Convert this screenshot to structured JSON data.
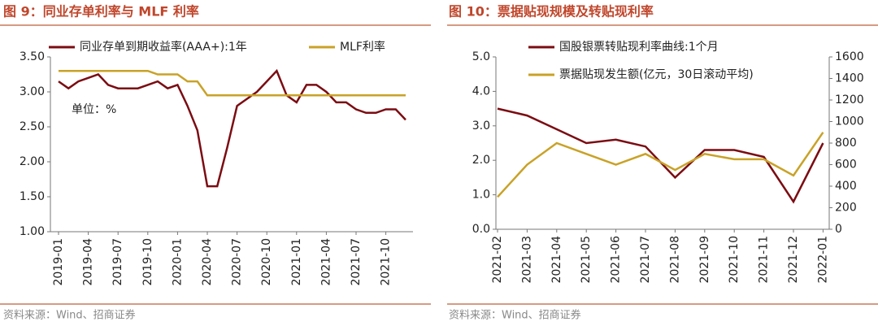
{
  "chart_data": [
    {
      "type": "line",
      "title": "图 9：同业存单利率与 MLF 利率",
      "annotation": "单位：%",
      "source": "资料来源：Wind、招商证券",
      "x": [
        "2019-01",
        "2019-02",
        "2019-03",
        "2019-04",
        "2019-05",
        "2019-06",
        "2019-07",
        "2019-08",
        "2019-09",
        "2019-10",
        "2019-11",
        "2019-12",
        "2020-01",
        "2020-02",
        "2020-03",
        "2020-04",
        "2020-05",
        "2020-06",
        "2020-07",
        "2020-08",
        "2020-09",
        "2020-10",
        "2020-11",
        "2020-12",
        "2021-01",
        "2021-02",
        "2021-03",
        "2021-04",
        "2021-05",
        "2021-06",
        "2021-07",
        "2021-08",
        "2021-09",
        "2021-10",
        "2021-11",
        "2021-12"
      ],
      "xticks": [
        "2019-01",
        "2019-04",
        "2019-07",
        "2019-10",
        "2020-01",
        "2020-04",
        "2020-07",
        "2020-10",
        "2021-01",
        "2021-04",
        "2021-07",
        "2021-10"
      ],
      "ylim": [
        1,
        3.5
      ],
      "yticks": [
        {
          "value": 1,
          "label": "1.00"
        },
        {
          "value": 1.5,
          "label": "1.50"
        },
        {
          "value": 2,
          "label": "2.00"
        },
        {
          "value": 2.5,
          "label": "2.50"
        },
        {
          "value": 3,
          "label": "3.00"
        },
        {
          "value": 3.5,
          "label": "3.50"
        }
      ],
      "series": [
        {
          "name": "同业存单到期收益率(AAA+):1年",
          "color": "#7b0c12",
          "values": [
            3.15,
            3.05,
            3.15,
            3.2,
            3.25,
            3.1,
            3.05,
            3.05,
            3.05,
            3.1,
            3.15,
            3.05,
            3.1,
            2.8,
            2.45,
            1.65,
            1.65,
            2.2,
            2.8,
            2.9,
            3.0,
            3.15,
            3.3,
            2.95,
            2.85,
            3.1,
            3.1,
            3.0,
            2.85,
            2.85,
            2.75,
            2.7,
            2.7,
            2.75,
            2.75,
            2.6
          ]
        },
        {
          "name": "MLF利率",
          "color": "#c9a227",
          "values": [
            3.3,
            3.3,
            3.3,
            3.3,
            3.3,
            3.3,
            3.3,
            3.3,
            3.3,
            3.3,
            3.25,
            3.25,
            3.25,
            3.15,
            3.15,
            2.95,
            2.95,
            2.95,
            2.95,
            2.95,
            2.95,
            2.95,
            2.95,
            2.95,
            2.95,
            2.95,
            2.95,
            2.95,
            2.95,
            2.95,
            2.95,
            2.95,
            2.95,
            2.95,
            2.95,
            2.95
          ]
        }
      ]
    },
    {
      "type": "line",
      "title": "图 10：票据贴现规模及转贴现利率",
      "source": "资料来源：Wind、招商证券",
      "x": [
        "2021-02",
        "2021-03",
        "2021-04",
        "2021-05",
        "2021-06",
        "2021-07",
        "2021-08",
        "2021-09",
        "2021-10",
        "2021-11",
        "2021-12",
        "2022-01"
      ],
      "ylim": [
        0,
        5
      ],
      "yticks": [
        {
          "value": 0,
          "label": "0.0"
        },
        {
          "value": 1,
          "label": "1.0"
        },
        {
          "value": 2,
          "label": "2.0"
        },
        {
          "value": 3,
          "label": "3.0"
        },
        {
          "value": 4,
          "label": "4.0"
        },
        {
          "value": 5,
          "label": "5.0"
        }
      ],
      "y2lim": [
        0,
        1600
      ],
      "y2ticks": [
        0,
        200,
        400,
        600,
        800,
        1000,
        1200,
        1400,
        1600
      ],
      "series": [
        {
          "name": "国股银票转贴现利率曲线:1个月",
          "color": "#7b0c12",
          "values": [
            3.5,
            3.3,
            2.9,
            2.5,
            2.6,
            2.4,
            1.5,
            2.3,
            2.3,
            2.1,
            0.8,
            2.5
          ]
        },
        {
          "name": "票据贴现发生额(亿元，30日滚动平均)",
          "color": "#c9a227",
          "axis": "y2",
          "values": [
            300,
            600,
            800,
            700,
            600,
            700,
            550,
            700,
            650,
            650,
            500,
            900
          ]
        }
      ]
    }
  ]
}
